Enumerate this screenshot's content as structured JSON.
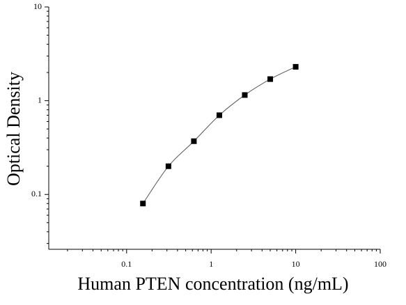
{
  "chart_data": {
    "type": "scatter",
    "xlabel": "Human PTEN concentration (ng/mL)",
    "ylabel": "Optical Density",
    "x": [
      0.156,
      0.3125,
      0.625,
      1.25,
      2.5,
      5,
      10
    ],
    "values": [
      0.08,
      0.2,
      0.37,
      0.7,
      1.15,
      1.7,
      2.3
    ],
    "color": "#000000",
    "xscale": "log",
    "yscale": "log",
    "xlim": [
      0.012,
      100
    ],
    "ylim": [
      0.026,
      10
    ],
    "xticks": [
      0.1,
      1,
      10,
      100
    ],
    "yticks": [
      0.1,
      1,
      10
    ],
    "minor_ticks": true,
    "fit_line": true
  }
}
